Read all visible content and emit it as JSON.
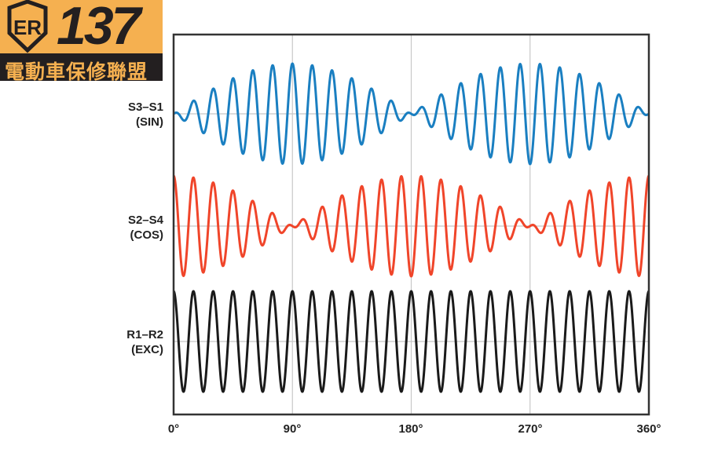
{
  "logo": {
    "number": "137",
    "subtitle": "電動車保修聯盟",
    "badge": "ER"
  },
  "chart_data": {
    "type": "line",
    "title": "",
    "xlabel": "",
    "ylabel": "",
    "x_ticks": [
      "0°",
      "90°",
      "180°",
      "270°",
      "360°"
    ],
    "xlim": [
      0,
      360
    ],
    "grid": true,
    "carrier_cycles": 24,
    "series": [
      {
        "name": "S3–S1",
        "name2": "(SIN)",
        "envelope": "sin",
        "color": "#1a7fc1"
      },
      {
        "name": "S2–S4",
        "name2": "(COS)",
        "envelope": "cos",
        "color": "#f0452a"
      },
      {
        "name": "R1–R2",
        "name2": "(EXC)",
        "envelope": "constant",
        "color": "#1a1a1a"
      }
    ]
  }
}
